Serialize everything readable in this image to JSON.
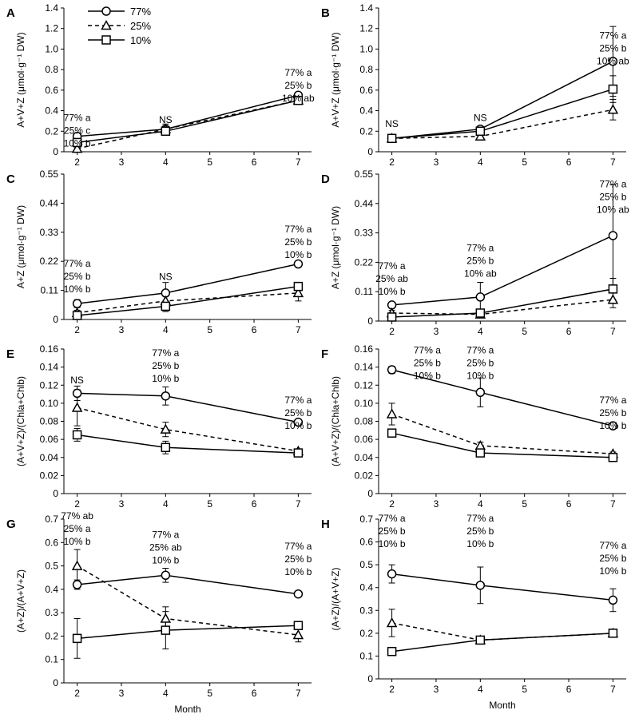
{
  "legend": [
    {
      "name": "77%",
      "marker": "circle",
      "line": "solid"
    },
    {
      "name": "25%",
      "marker": "triangle",
      "line": "dashed"
    },
    {
      "name": "10%",
      "marker": "square",
      "line": "solid"
    }
  ],
  "chart_data": [
    {
      "panel": "A",
      "type": "line",
      "ylabel": "A+V+Z (μmol·g⁻¹ DW)",
      "xlabel": "",
      "xlim": [
        1.7,
        7.3
      ],
      "xticks": [
        2,
        3,
        4,
        5,
        6,
        7
      ],
      "ylim": [
        0,
        1.4
      ],
      "yticks": [
        "0",
        "0.2",
        "0.4",
        "0.6",
        "0.8",
        "1.0",
        "1.2",
        "1.4"
      ],
      "x": [
        2,
        4,
        7
      ],
      "series": [
        {
          "name": "77%",
          "values": [
            0.15,
            0.22,
            0.55
          ],
          "err": [
            0.02,
            0.03,
            0.03
          ]
        },
        {
          "name": "25%",
          "values": [
            0.03,
            0.22,
            0.5
          ],
          "err": [
            0.01,
            0.05,
            0.03
          ]
        },
        {
          "name": "10%",
          "values": [
            0.09,
            0.2,
            0.5
          ],
          "err": [
            0.02,
            0.03,
            0.03
          ]
        }
      ],
      "annotations": [
        {
          "x": 2,
          "y": 0.3,
          "lines": [
            "77% a",
            "25% c",
            "10% b"
          ]
        },
        {
          "x": 4,
          "y": 0.28,
          "lines": [
            "NS"
          ]
        },
        {
          "x": 7,
          "y": 0.74,
          "lines": [
            "77% a",
            "25% b",
            "10% ab"
          ]
        }
      ]
    },
    {
      "panel": "B",
      "type": "line",
      "ylabel": "A+V+Z (μmol·g⁻¹ DW)",
      "xlabel": "",
      "xlim": [
        1.7,
        7.3
      ],
      "xticks": [
        2,
        3,
        4,
        5,
        6,
        7
      ],
      "ylim": [
        0,
        1.4
      ],
      "yticks": [
        "0",
        "0.2",
        "0.4",
        "0.6",
        "0.8",
        "1.0",
        "1.2",
        "1.4"
      ],
      "x": [
        2,
        4,
        7
      ],
      "series": [
        {
          "name": "77%",
          "values": [
            0.13,
            0.22,
            0.88
          ],
          "err": [
            0.01,
            0.02,
            0.34
          ]
        },
        {
          "name": "25%",
          "values": [
            0.13,
            0.15,
            0.41
          ],
          "err": [
            0.01,
            0.02,
            0.1
          ]
        },
        {
          "name": "10%",
          "values": [
            0.13,
            0.2,
            0.61
          ],
          "err": [
            0.01,
            0.03,
            0.13
          ]
        }
      ],
      "annotations": [
        {
          "x": 2,
          "y": 0.24,
          "lines": [
            "NS"
          ]
        },
        {
          "x": 4,
          "y": 0.3,
          "lines": [
            "NS"
          ]
        },
        {
          "x": 7,
          "y": 1.1,
          "lines": [
            "77% a",
            "25% b",
            "10% ab"
          ]
        }
      ]
    },
    {
      "panel": "C",
      "type": "line",
      "ylabel": "A+Z (μmol·g⁻¹ DW)",
      "xlabel": "",
      "xlim": [
        1.7,
        7.3
      ],
      "xticks": [
        2,
        3,
        4,
        5,
        6,
        7
      ],
      "ylim": [
        0,
        0.55
      ],
      "yticks": [
        "0",
        "0.11",
        "0.22",
        "0.33",
        "0.44",
        "0.55"
      ],
      "x": [
        2,
        4,
        7
      ],
      "series": [
        {
          "name": "77%",
          "values": [
            0.06,
            0.1,
            0.21
          ],
          "err": [
            0.015,
            0.04,
            0.005
          ]
        },
        {
          "name": "25%",
          "values": [
            0.025,
            0.07,
            0.1
          ],
          "err": [
            0.01,
            0.02,
            0.03
          ]
        },
        {
          "name": "10%",
          "values": [
            0.015,
            0.05,
            0.125
          ],
          "err": [
            0.01,
            0.02,
            0.015
          ]
        }
      ],
      "annotations": [
        {
          "x": 2,
          "y": 0.2,
          "lines": [
            "77% a",
            "25% b",
            "10% b"
          ]
        },
        {
          "x": 4,
          "y": 0.15,
          "lines": [
            "NS"
          ]
        },
        {
          "x": 7,
          "y": 0.33,
          "lines": [
            "77% a",
            "25% b",
            "10% b"
          ]
        }
      ]
    },
    {
      "panel": "D",
      "type": "line",
      "ylabel": "A+Z (μmol·g⁻¹ DW)",
      "xlabel": "",
      "xlim": [
        1.7,
        7.3
      ],
      "xticks": [
        2,
        3,
        4,
        5,
        6,
        7
      ],
      "ylim": [
        0,
        0.55
      ],
      "yticks": [
        "0",
        "0.11",
        "0.22",
        "0.33",
        "0.44",
        "0.55"
      ],
      "x": [
        2,
        4,
        7
      ],
      "series": [
        {
          "name": "77%",
          "values": [
            0.06,
            0.09,
            0.32
          ],
          "err": [
            0.01,
            0.055,
            0.19
          ]
        },
        {
          "name": "25%",
          "values": [
            0.03,
            0.025,
            0.08
          ],
          "err": [
            0.01,
            0.005,
            0.03
          ]
        },
        {
          "name": "10%",
          "values": [
            0.015,
            0.03,
            0.12
          ],
          "err": [
            0.005,
            0.01,
            0.04
          ]
        }
      ],
      "annotations": [
        {
          "x": 2,
          "y": 0.195,
          "lines": [
            "77% a",
            "25% ab",
            "10% b"
          ]
        },
        {
          "x": 4,
          "y": 0.262,
          "lines": [
            "77% a",
            "25% b",
            "10% ab"
          ]
        },
        {
          "x": 7,
          "y": 0.5,
          "lines": [
            "77% a",
            "25% b",
            "10% ab"
          ]
        }
      ]
    },
    {
      "panel": "E",
      "type": "line",
      "ylabel": "(A+V+Z)/(Chla+Chlb)",
      "xlabel": "",
      "xlim": [
        1.7,
        7.3
      ],
      "xticks": [
        2,
        3,
        4,
        5,
        6,
        7
      ],
      "ylim": [
        0,
        0.16
      ],
      "yticks": [
        "0",
        "0.02",
        "0.04",
        "0.06",
        "0.08",
        "0.10",
        "0.12",
        "0.14",
        "0.16"
      ],
      "x": [
        2,
        4,
        7
      ],
      "series": [
        {
          "name": "77%",
          "values": [
            0.111,
            0.108,
            0.079
          ],
          "err": [
            0.008,
            0.01,
            0.002
          ]
        },
        {
          "name": "25%",
          "values": [
            0.095,
            0.071,
            0.047
          ],
          "err": [
            0.02,
            0.008,
            0.002
          ]
        },
        {
          "name": "10%",
          "values": [
            0.065,
            0.051,
            0.045
          ],
          "err": [
            0.007,
            0.007,
            0.003
          ]
        }
      ],
      "annotations": [
        {
          "x": 2,
          "y": 0.122,
          "lines": [
            "NS"
          ]
        },
        {
          "x": 4,
          "y": 0.152,
          "lines": [
            "77% a",
            "25% b",
            "10% b"
          ]
        },
        {
          "x": 7,
          "y": 0.1,
          "lines": [
            "77% a",
            "25% b",
            "10% b"
          ]
        }
      ]
    },
    {
      "panel": "F",
      "type": "line",
      "ylabel": "(A+V+Z)/(Chla+Chlb)",
      "xlabel": "",
      "xlim": [
        1.7,
        7.3
      ],
      "xticks": [
        2,
        3,
        4,
        5,
        6,
        7
      ],
      "ylim": [
        0,
        0.16
      ],
      "yticks": [
        "0",
        "0.02",
        "0.04",
        "0.06",
        "0.08",
        "0.10",
        "0.12",
        "0.14",
        "0.16"
      ],
      "x": [
        2,
        4,
        7
      ],
      "series": [
        {
          "name": "77%",
          "values": [
            0.137,
            0.112,
            0.075
          ],
          "err": [
            0.004,
            0.016,
            0.003
          ]
        },
        {
          "name": "25%",
          "values": [
            0.088,
            0.053,
            0.044
          ],
          "err": [
            0.012,
            0.004,
            0.002
          ]
        },
        {
          "name": "10%",
          "values": [
            0.067,
            0.045,
            0.04
          ],
          "err": [
            0.003,
            0.003,
            0.002
          ]
        }
      ],
      "annotations": [
        {
          "x": 2.8,
          "y": 0.155,
          "lines": [
            "77% a",
            "25% b",
            "10% b"
          ]
        },
        {
          "x": 4,
          "y": 0.155,
          "lines": [
            "77% a",
            "25% b",
            "10% b"
          ]
        },
        {
          "x": 7,
          "y": 0.1,
          "lines": [
            "77% a",
            "25% b",
            "10% b"
          ]
        }
      ]
    },
    {
      "panel": "G",
      "type": "line",
      "ylabel": "(A+Z)/(A+V+Z)",
      "xlabel": "Month",
      "xlim": [
        1.7,
        7.3
      ],
      "xticks": [
        2,
        3,
        4,
        5,
        6,
        7
      ],
      "ylim": [
        0,
        0.7
      ],
      "yticks": [
        "0",
        "0.1",
        "0.2",
        "0.3",
        "0.4",
        "0.5",
        "0.6",
        "0.7"
      ],
      "x": [
        2,
        4,
        7
      ],
      "series": [
        {
          "name": "77%",
          "values": [
            0.42,
            0.46,
            0.38
          ],
          "err": [
            0.02,
            0.03,
            0.01
          ]
        },
        {
          "name": "25%",
          "values": [
            0.5,
            0.275,
            0.205
          ],
          "err": [
            0.07,
            0.05,
            0.03
          ]
        },
        {
          "name": "10%",
          "values": [
            0.19,
            0.225,
            0.245
          ],
          "err": [
            0.085,
            0.08,
            0.015
          ]
        }
      ],
      "annotations": [
        {
          "x": 2,
          "y": 0.7,
          "lines": [
            "77% ab",
            "25% a",
            "10% b"
          ]
        },
        {
          "x": 4,
          "y": 0.62,
          "lines": [
            "77% a",
            "25% ab",
            "10% b"
          ]
        },
        {
          "x": 7,
          "y": 0.57,
          "lines": [
            "77% a",
            "25% b",
            "10% b"
          ]
        }
      ]
    },
    {
      "panel": "H",
      "type": "line",
      "ylabel": "(A+Z)/(A+V+Z)",
      "xlabel": "Month",
      "xlim": [
        1.7,
        7.3
      ],
      "xticks": [
        2,
        3,
        4,
        5,
        6,
        7
      ],
      "ylim": [
        0,
        0.7
      ],
      "yticks": [
        "0",
        "0.1",
        "0.2",
        "0.3",
        "0.4",
        "0.5",
        "0.6",
        "0.7"
      ],
      "x": [
        2,
        4,
        7
      ],
      "series": [
        {
          "name": "77%",
          "values": [
            0.46,
            0.41,
            0.345
          ],
          "err": [
            0.04,
            0.08,
            0.05
          ]
        },
        {
          "name": "25%",
          "values": [
            0.245,
            0.17,
            0.2
          ],
          "err": [
            0.06,
            0.01,
            0.01
          ]
        },
        {
          "name": "10%",
          "values": [
            0.12,
            0.17,
            0.2
          ],
          "err": [
            0.01,
            0.01,
            0.01
          ]
        }
      ],
      "annotations": [
        {
          "x": 2,
          "y": 0.69,
          "lines": [
            "77% a",
            "25% b",
            "10% b"
          ]
        },
        {
          "x": 4,
          "y": 0.69,
          "lines": [
            "77% a",
            "25% b",
            "10% b"
          ]
        },
        {
          "x": 7,
          "y": 0.57,
          "lines": [
            "77% a",
            "25% b",
            "10% b"
          ]
        }
      ]
    }
  ]
}
